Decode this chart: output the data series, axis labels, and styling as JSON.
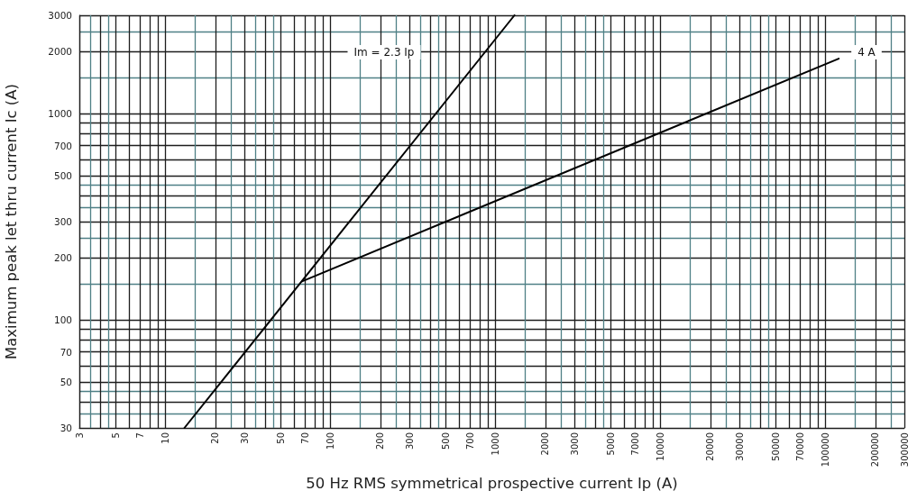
{
  "chart_data": {
    "type": "line",
    "xlabel": "50 Hz RMS symmetrical prospective current Ip (A)",
    "ylabel": "Maximum peak let thru current Ic (A)",
    "log": "xy",
    "xlim": [
      3,
      300000
    ],
    "ylim": [
      30,
      3000
    ],
    "xticks": [
      3,
      {
        "value": 3.5,
        "label": null
      },
      {
        "value": 4,
        "label": null
      },
      {
        "value": 4.5,
        "label": null
      },
      5,
      {
        "value": 6,
        "label": null
      },
      7,
      {
        "value": 8,
        "label": null
      },
      {
        "value": 9,
        "label": null
      },
      10,
      {
        "value": 15,
        "label": null
      },
      20,
      {
        "value": 25,
        "label": null
      },
      30,
      {
        "value": 35,
        "label": null
      },
      {
        "value": 40,
        "label": null
      },
      {
        "value": 45,
        "label": null
      },
      50,
      {
        "value": 60,
        "label": null
      },
      70,
      {
        "value": 80,
        "label": null
      },
      {
        "value": 90,
        "label": null
      },
      100,
      {
        "value": 150,
        "label": null
      },
      200,
      {
        "value": 250,
        "label": null
      },
      300,
      {
        "value": 350,
        "label": null
      },
      {
        "value": 400,
        "label": null
      },
      {
        "value": 450,
        "label": null
      },
      500,
      {
        "value": 600,
        "label": null
      },
      700,
      {
        "value": 800,
        "label": null
      },
      {
        "value": 900,
        "label": null
      },
      1000,
      {
        "value": 1500,
        "label": null
      },
      2000,
      {
        "value": 2500,
        "label": null
      },
      3000,
      {
        "value": 3500,
        "label": null
      },
      {
        "value": 4000,
        "label": null
      },
      {
        "value": 4500,
        "label": null
      },
      5000,
      {
        "value": 6000,
        "label": null
      },
      7000,
      {
        "value": 8000,
        "label": null
      },
      {
        "value": 9000,
        "label": null
      },
      10000,
      {
        "value": 15000,
        "label": null
      },
      20000,
      {
        "value": 25000,
        "label": null
      },
      30000,
      {
        "value": 35000,
        "label": null
      },
      {
        "value": 40000,
        "label": null
      },
      {
        "value": 45000,
        "label": null
      },
      50000,
      {
        "value": 60000,
        "label": null
      },
      70000,
      {
        "value": 80000,
        "label": null
      },
      {
        "value": 90000,
        "label": null
      },
      100000,
      {
        "value": 150000,
        "label": null
      },
      200000,
      {
        "value": 250000,
        "label": null
      },
      300000
    ],
    "yticks": [
      30,
      {
        "value": 35,
        "label": null
      },
      {
        "value": 40,
        "label": null
      },
      {
        "value": 45,
        "label": null
      },
      50,
      {
        "value": 60,
        "label": null
      },
      70,
      {
        "value": 80,
        "label": null
      },
      {
        "value": 90,
        "label": null
      },
      100,
      {
        "value": 150,
        "label": null
      },
      200,
      {
        "value": 250,
        "label": null
      },
      300,
      {
        "value": 350,
        "label": null
      },
      {
        "value": 400,
        "label": null
      },
      {
        "value": 450,
        "label": null
      },
      500,
      {
        "value": 600,
        "label": null
      },
      700,
      {
        "value": 800,
        "label": null
      },
      {
        "value": 900,
        "label": null
      },
      1000,
      {
        "value": 1500,
        "label": null
      },
      2000,
      {
        "value": 2500,
        "label": null
      },
      3000
    ],
    "grid": true,
    "marker": "none",
    "line_style": "solid",
    "series": [
      {
        "color": "#000000",
        "x": [
          13,
          1300
        ],
        "values": [
          30,
          3000
        ]
      },
      {
        "color": "#000000",
        "x": [
          67,
          120000
        ],
        "values": [
          154,
          1850
        ]
      }
    ],
    "annotations": [
      "Im = 2.3 Ip",
      "4 A"
    ]
  }
}
